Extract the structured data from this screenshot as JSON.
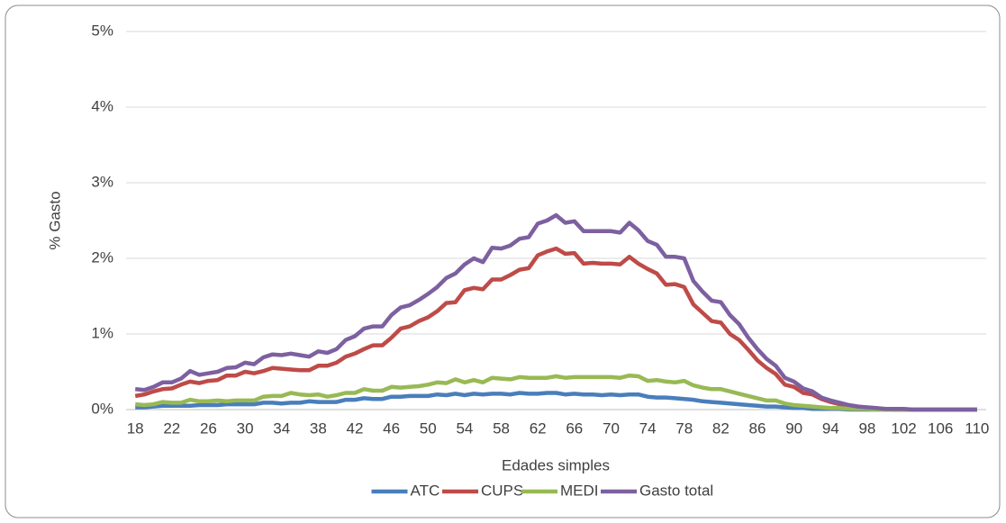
{
  "chart_data": {
    "type": "line",
    "x_label": "Edades simples",
    "y_label": "% Gasto",
    "x": [
      18,
      19,
      20,
      21,
      22,
      23,
      24,
      25,
      26,
      27,
      28,
      29,
      30,
      31,
      32,
      33,
      34,
      35,
      36,
      37,
      38,
      39,
      40,
      41,
      42,
      43,
      44,
      45,
      46,
      47,
      48,
      49,
      50,
      51,
      52,
      53,
      54,
      55,
      56,
      57,
      58,
      59,
      60,
      61,
      62,
      63,
      64,
      65,
      66,
      67,
      68,
      69,
      70,
      71,
      72,
      73,
      74,
      75,
      76,
      77,
      78,
      79,
      80,
      81,
      82,
      83,
      84,
      85,
      86,
      87,
      88,
      89,
      90,
      91,
      92,
      93,
      94,
      95,
      96,
      97,
      98,
      99,
      100,
      101,
      102,
      103,
      104,
      105,
      106,
      107,
      108,
      109,
      110
    ],
    "xlim": [
      17,
      111
    ],
    "xticks": [
      18,
      22,
      26,
      30,
      34,
      38,
      42,
      46,
      50,
      54,
      58,
      62,
      66,
      70,
      74,
      78,
      82,
      86,
      90,
      94,
      98,
      102,
      106,
      110
    ],
    "ylim": [
      0,
      5
    ],
    "yticks": [
      {
        "value": 0,
        "label": "0%"
      },
      {
        "value": 1,
        "label": "1%"
      },
      {
        "value": 2,
        "label": "2%"
      },
      {
        "value": 3,
        "label": "3%"
      },
      {
        "value": 4,
        "label": "4%"
      },
      {
        "value": 5,
        "label": "5%"
      }
    ],
    "grid": true,
    "legend": "bottom",
    "series": [
      {
        "name": "ATC",
        "color": "#4a7ebb",
        "values": [
          0.03,
          0.03,
          0.04,
          0.05,
          0.05,
          0.05,
          0.05,
          0.06,
          0.06,
          0.06,
          0.07,
          0.07,
          0.07,
          0.07,
          0.09,
          0.09,
          0.08,
          0.09,
          0.09,
          0.11,
          0.1,
          0.1,
          0.1,
          0.13,
          0.13,
          0.15,
          0.14,
          0.14,
          0.17,
          0.17,
          0.18,
          0.18,
          0.18,
          0.2,
          0.19,
          0.21,
          0.19,
          0.21,
          0.2,
          0.21,
          0.21,
          0.2,
          0.22,
          0.21,
          0.21,
          0.22,
          0.22,
          0.2,
          0.21,
          0.2,
          0.2,
          0.19,
          0.2,
          0.19,
          0.2,
          0.2,
          0.17,
          0.16,
          0.16,
          0.15,
          0.14,
          0.13,
          0.11,
          0.1,
          0.09,
          0.08,
          0.07,
          0.06,
          0.05,
          0.04,
          0.04,
          0.03,
          0.02,
          0.02,
          0.01,
          0.01,
          0.01,
          0.01,
          0,
          0,
          0,
          0,
          0,
          0,
          0,
          0,
          0,
          0,
          0,
          0,
          0,
          0,
          0
        ]
      },
      {
        "name": "CUPS",
        "color": "#be4b48",
        "values": [
          0.18,
          0.2,
          0.24,
          0.27,
          0.28,
          0.33,
          0.37,
          0.35,
          0.38,
          0.39,
          0.45,
          0.45,
          0.5,
          0.48,
          0.51,
          0.55,
          0.54,
          0.53,
          0.52,
          0.52,
          0.58,
          0.58,
          0.62,
          0.7,
          0.74,
          0.8,
          0.85,
          0.85,
          0.95,
          1.07,
          1.1,
          1.17,
          1.22,
          1.3,
          1.41,
          1.42,
          1.58,
          1.61,
          1.59,
          1.72,
          1.72,
          1.78,
          1.85,
          1.87,
          2.04,
          2.09,
          2.13,
          2.06,
          2.07,
          1.93,
          1.94,
          1.93,
          1.93,
          1.92,
          2.02,
          1.93,
          1.86,
          1.8,
          1.65,
          1.66,
          1.62,
          1.39,
          1.28,
          1.17,
          1.15,
          1.0,
          0.92,
          0.79,
          0.65,
          0.55,
          0.47,
          0.33,
          0.3,
          0.22,
          0.2,
          0.14,
          0.1,
          0.07,
          0.04,
          0.03,
          0.02,
          0.01,
          0.01,
          0,
          0,
          0,
          0,
          0,
          0,
          0,
          0,
          0,
          0
        ]
      },
      {
        "name": "MEDI",
        "color": "#98b954",
        "values": [
          0.07,
          0.06,
          0.07,
          0.1,
          0.09,
          0.09,
          0.13,
          0.11,
          0.11,
          0.12,
          0.11,
          0.12,
          0.12,
          0.12,
          0.17,
          0.18,
          0.18,
          0.22,
          0.2,
          0.19,
          0.2,
          0.17,
          0.19,
          0.22,
          0.22,
          0.27,
          0.25,
          0.25,
          0.3,
          0.29,
          0.3,
          0.31,
          0.33,
          0.36,
          0.35,
          0.4,
          0.36,
          0.39,
          0.36,
          0.42,
          0.41,
          0.4,
          0.43,
          0.42,
          0.42,
          0.42,
          0.44,
          0.42,
          0.43,
          0.43,
          0.43,
          0.43,
          0.43,
          0.42,
          0.45,
          0.44,
          0.38,
          0.39,
          0.37,
          0.36,
          0.38,
          0.32,
          0.29,
          0.27,
          0.27,
          0.24,
          0.21,
          0.18,
          0.15,
          0.12,
          0.12,
          0.08,
          0.06,
          0.05,
          0.04,
          0.03,
          0.02,
          0.02,
          0.01,
          0.01,
          0.01,
          0,
          0,
          0,
          0,
          0,
          0,
          0,
          0,
          0,
          0,
          0,
          0
        ]
      },
      {
        "name": "Gasto total",
        "color": "#7d60a0",
        "values": [
          0.27,
          0.26,
          0.3,
          0.36,
          0.36,
          0.41,
          0.51,
          0.46,
          0.48,
          0.5,
          0.55,
          0.56,
          0.62,
          0.6,
          0.69,
          0.73,
          0.72,
          0.74,
          0.72,
          0.7,
          0.77,
          0.75,
          0.8,
          0.92,
          0.97,
          1.07,
          1.1,
          1.1,
          1.25,
          1.35,
          1.38,
          1.45,
          1.53,
          1.62,
          1.74,
          1.8,
          1.92,
          2.0,
          1.95,
          2.14,
          2.13,
          2.17,
          2.26,
          2.28,
          2.46,
          2.5,
          2.57,
          2.47,
          2.49,
          2.36,
          2.36,
          2.36,
          2.36,
          2.34,
          2.47,
          2.37,
          2.23,
          2.18,
          2.02,
          2.02,
          2.0,
          1.7,
          1.56,
          1.44,
          1.42,
          1.25,
          1.13,
          0.95,
          0.8,
          0.67,
          0.58,
          0.42,
          0.37,
          0.28,
          0.24,
          0.16,
          0.12,
          0.09,
          0.06,
          0.04,
          0.03,
          0.02,
          0.01,
          0.01,
          0.01,
          0,
          0,
          0,
          0,
          0,
          0,
          0,
          0
        ]
      }
    ]
  }
}
